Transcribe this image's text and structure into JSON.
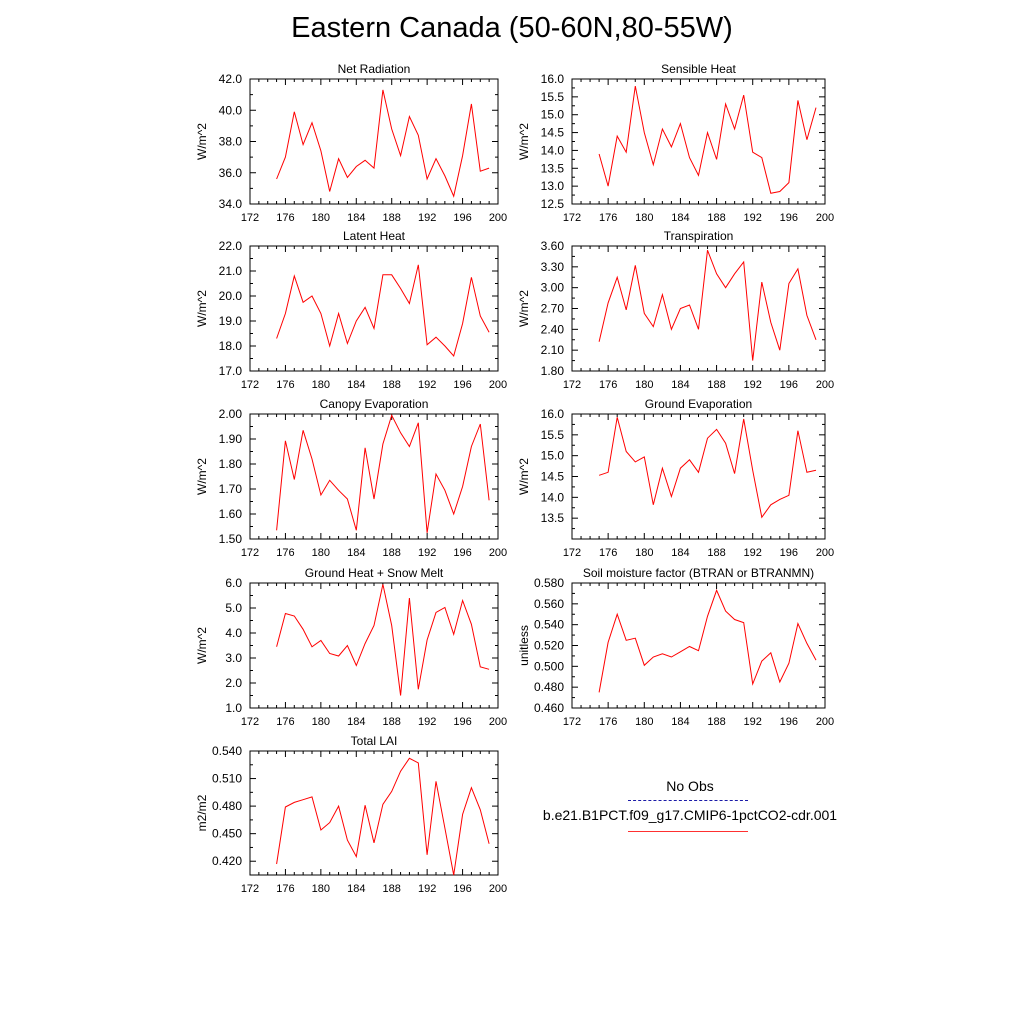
{
  "figure": {
    "title": "Eastern Canada (50-60N,80-55W)",
    "legend": {
      "obs_label": "No Obs",
      "model_label": "b.e21.B1PCT.f09_g17.CMIP6-1pctCO2-cdr.001",
      "obs_color": "#1a1aa8",
      "model_color": "#ff0000"
    }
  },
  "chart_data": [
    {
      "type": "line",
      "title": "Net Radiation",
      "ylabel": "W/m^2",
      "xlim": [
        172,
        200
      ],
      "ylim": [
        34.0,
        42.0
      ],
      "xticks": [
        "172",
        "176",
        "180",
        "184",
        "188",
        "192",
        "196",
        "200"
      ],
      "yticks": [
        "34.0",
        "36.0",
        "38.0",
        "40.0",
        "42.0"
      ],
      "series": [
        {
          "x": [
            175,
            176,
            177,
            178,
            179,
            180,
            181,
            182,
            183,
            184,
            185,
            186,
            187,
            188,
            189,
            190,
            191,
            192,
            193,
            194,
            195,
            196,
            197,
            198,
            199
          ],
          "values": [
            35.6,
            37.0,
            39.9,
            37.8,
            39.2,
            37.4,
            34.8,
            36.9,
            35.7,
            36.4,
            36.8,
            36.3,
            41.3,
            38.8,
            37.1,
            39.6,
            38.4,
            35.6,
            36.9,
            35.8,
            34.5,
            37.1,
            40.4,
            36.1,
            36.3
          ]
        }
      ]
    },
    {
      "type": "line",
      "title": "Sensible Heat",
      "ylabel": "W/m^2",
      "xlim": [
        172,
        200
      ],
      "ylim": [
        12.5,
        16.0
      ],
      "xticks": [
        "172",
        "176",
        "180",
        "184",
        "188",
        "192",
        "196",
        "200"
      ],
      "yticks": [
        "12.5",
        "13.0",
        "13.5",
        "14.0",
        "14.5",
        "15.0",
        "15.5",
        "16.0"
      ],
      "series": [
        {
          "x": [
            175,
            176,
            177,
            178,
            179,
            180,
            181,
            182,
            183,
            184,
            185,
            186,
            187,
            188,
            189,
            190,
            191,
            192,
            193,
            194,
            195,
            196,
            197,
            198,
            199
          ],
          "values": [
            13.9,
            13.0,
            14.4,
            13.95,
            15.8,
            14.5,
            13.6,
            14.6,
            14.1,
            14.75,
            13.8,
            13.3,
            14.5,
            13.75,
            15.3,
            14.6,
            15.55,
            13.95,
            13.8,
            12.8,
            12.85,
            13.1,
            15.4,
            14.3,
            15.2
          ]
        }
      ]
    },
    {
      "type": "line",
      "title": "Latent Heat",
      "ylabel": "W/m^2",
      "xlim": [
        172,
        200
      ],
      "ylim": [
        17.0,
        22.0
      ],
      "xticks": [
        "172",
        "176",
        "180",
        "184",
        "188",
        "192",
        "196",
        "200"
      ],
      "yticks": [
        "17.0",
        "18.0",
        "19.0",
        "20.0",
        "21.0",
        "22.0"
      ],
      "series": [
        {
          "x": [
            175,
            176,
            177,
            178,
            179,
            180,
            181,
            182,
            183,
            184,
            185,
            186,
            187,
            188,
            189,
            190,
            191,
            192,
            193,
            194,
            195,
            196,
            197,
            198,
            199
          ],
          "values": [
            18.3,
            19.3,
            20.8,
            19.75,
            20.0,
            19.3,
            18.0,
            19.3,
            18.1,
            19.0,
            19.55,
            18.7,
            20.85,
            20.85,
            20.3,
            19.7,
            21.25,
            18.05,
            18.35,
            18.0,
            17.6,
            18.9,
            20.75,
            19.2,
            18.55
          ]
        }
      ]
    },
    {
      "type": "line",
      "title": "Transpiration",
      "ylabel": "W/m^2",
      "xlim": [
        172,
        200
      ],
      "ylim": [
        1.8,
        3.6
      ],
      "xticks": [
        "172",
        "176",
        "180",
        "184",
        "188",
        "192",
        "196",
        "200"
      ],
      "yticks": [
        "1.80",
        "2.10",
        "2.40",
        "2.70",
        "3.00",
        "3.30",
        "3.60"
      ],
      "series": [
        {
          "x": [
            175,
            176,
            177,
            178,
            179,
            180,
            181,
            182,
            183,
            184,
            185,
            186,
            187,
            188,
            189,
            190,
            191,
            192,
            193,
            194,
            195,
            196,
            197,
            198,
            199
          ],
          "values": [
            2.22,
            2.78,
            3.15,
            2.68,
            3.32,
            2.63,
            2.44,
            2.9,
            2.4,
            2.7,
            2.75,
            2.4,
            3.54,
            3.2,
            3.0,
            3.2,
            3.37,
            1.95,
            3.08,
            2.5,
            2.1,
            3.06,
            3.27,
            2.6,
            2.25
          ]
        }
      ]
    },
    {
      "type": "line",
      "title": "Canopy Evaporation",
      "ylabel": "W/m^2",
      "xlim": [
        172,
        200
      ],
      "ylim": [
        1.5,
        2.0
      ],
      "xticks": [
        "172",
        "176",
        "180",
        "184",
        "188",
        "192",
        "196",
        "200"
      ],
      "yticks": [
        "1.50",
        "1.60",
        "1.70",
        "1.80",
        "1.90",
        "2.00"
      ],
      "series": [
        {
          "x": [
            175,
            176,
            177,
            178,
            179,
            180,
            181,
            182,
            183,
            184,
            185,
            186,
            187,
            188,
            189,
            190,
            191,
            192,
            193,
            194,
            195,
            196,
            197,
            198,
            199
          ],
          "values": [
            1.535,
            1.893,
            1.738,
            1.935,
            1.82,
            1.676,
            1.735,
            1.695,
            1.66,
            1.535,
            1.865,
            1.66,
            1.88,
            1.995,
            1.925,
            1.87,
            1.965,
            1.525,
            1.76,
            1.695,
            1.6,
            1.71,
            1.87,
            1.96,
            1.655
          ]
        }
      ]
    },
    {
      "type": "line",
      "title": "Ground Evaporation",
      "ylabel": "W/m^2",
      "xlim": [
        172,
        200
      ],
      "ylim": [
        13.0,
        16.0
      ],
      "xticks": [
        "172",
        "176",
        "180",
        "184",
        "188",
        "192",
        "196",
        "200"
      ],
      "yticks": [
        "13.5",
        "14.0",
        "14.5",
        "15.0",
        "15.5",
        "16.0"
      ],
      "series": [
        {
          "x": [
            175,
            176,
            177,
            178,
            179,
            180,
            181,
            182,
            183,
            184,
            185,
            186,
            187,
            188,
            189,
            190,
            191,
            192,
            193,
            194,
            195,
            196,
            197,
            198,
            199
          ],
          "values": [
            14.53,
            14.6,
            15.92,
            15.1,
            14.85,
            14.97,
            13.82,
            14.7,
            14.02,
            14.7,
            14.9,
            14.6,
            15.42,
            15.63,
            15.3,
            14.57,
            15.88,
            14.65,
            13.52,
            13.82,
            13.95,
            14.05,
            15.6,
            14.6,
            14.65
          ]
        }
      ]
    },
    {
      "type": "line",
      "title": "Ground Heat + Snow Melt",
      "ylabel": "W/m^2",
      "xlim": [
        172,
        200
      ],
      "ylim": [
        1.0,
        6.0
      ],
      "xticks": [
        "172",
        "176",
        "180",
        "184",
        "188",
        "192",
        "196",
        "200"
      ],
      "yticks": [
        "1.0",
        "2.0",
        "3.0",
        "4.0",
        "5.0",
        "6.0"
      ],
      "series": [
        {
          "x": [
            175,
            176,
            177,
            178,
            179,
            180,
            181,
            182,
            183,
            184,
            185,
            186,
            187,
            188,
            189,
            190,
            191,
            192,
            193,
            194,
            195,
            196,
            197,
            198,
            199
          ],
          "values": [
            3.45,
            4.78,
            4.68,
            4.15,
            3.45,
            3.7,
            3.18,
            3.08,
            3.5,
            2.7,
            3.58,
            4.3,
            5.95,
            4.3,
            1.5,
            5.4,
            1.75,
            3.72,
            4.82,
            5.02,
            3.95,
            5.3,
            4.35,
            2.65,
            2.55
          ]
        }
      ]
    },
    {
      "type": "line",
      "title": "Soil moisture factor (BTRAN or BTRANMN)",
      "ylabel": "unitless",
      "xlim": [
        172,
        200
      ],
      "ylim": [
        0.46,
        0.58
      ],
      "xticks": [
        "172",
        "176",
        "180",
        "184",
        "188",
        "192",
        "196",
        "200"
      ],
      "yticks": [
        "0.460",
        "0.480",
        "0.500",
        "0.520",
        "0.540",
        "0.560",
        "0.580"
      ],
      "series": [
        {
          "x": [
            175,
            176,
            177,
            178,
            179,
            180,
            181,
            182,
            183,
            184,
            185,
            186,
            187,
            188,
            189,
            190,
            191,
            192,
            193,
            194,
            195,
            196,
            197,
            198,
            199
          ],
          "values": [
            0.475,
            0.523,
            0.55,
            0.525,
            0.527,
            0.501,
            0.509,
            0.512,
            0.509,
            0.514,
            0.519,
            0.515,
            0.548,
            0.573,
            0.553,
            0.545,
            0.542,
            0.483,
            0.505,
            0.513,
            0.485,
            0.503,
            0.541,
            0.522,
            0.506
          ]
        }
      ]
    },
    {
      "type": "line",
      "title": "Total LAI",
      "ylabel": "m2/m2",
      "xlim": [
        172,
        200
      ],
      "ylim": [
        0.405,
        0.54
      ],
      "xticks": [
        "172",
        "176",
        "180",
        "184",
        "188",
        "192",
        "196",
        "200"
      ],
      "yticks": [
        "0.420",
        "0.450",
        "0.480",
        "0.510",
        "0.540"
      ],
      "series": [
        {
          "x": [
            175,
            176,
            177,
            178,
            179,
            180,
            181,
            182,
            183,
            184,
            185,
            186,
            187,
            188,
            189,
            190,
            191,
            192,
            193,
            194,
            195,
            196,
            197,
            198,
            199
          ],
          "values": [
            0.417,
            0.479,
            0.484,
            0.487,
            0.49,
            0.454,
            0.462,
            0.48,
            0.443,
            0.425,
            0.481,
            0.44,
            0.482,
            0.496,
            0.518,
            0.532,
            0.527,
            0.427,
            0.507,
            0.456,
            0.405,
            0.471,
            0.5,
            0.476,
            0.439
          ]
        }
      ]
    }
  ]
}
